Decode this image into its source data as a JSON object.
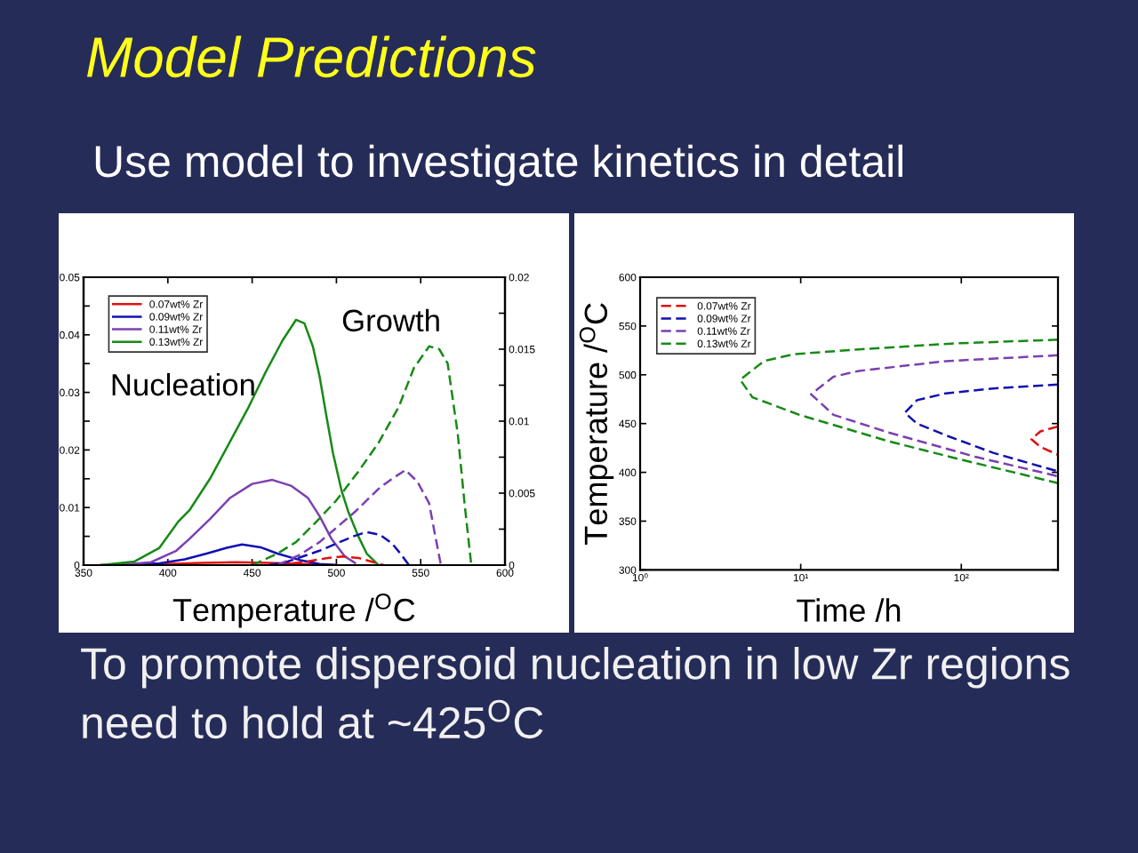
{
  "chart_data": [
    {
      "type": "other",
      "title": "Model Predictions",
      "subtitle": "Use model to investigate kinetics in detail",
      "annotations": [
        "To promote dispersoid nucleation in low Zr regions need to hold at ~425$^{O}$C"
      ]
    },
    {
      "type": "line",
      "xlabel": "Temperature /$^{O}$C",
      "annotations": [
        "Nucleation",
        "Growth"
      ],
      "xlim": [
        350,
        600
      ],
      "xticks": [
        350,
        400,
        450,
        500,
        550,
        600
      ],
      "ylim": [
        0,
        0.05
      ],
      "yticks": [
        0,
        {
          "value": 0.005,
          "label": null
        },
        0.01,
        {
          "value": 0.015,
          "label": null
        },
        0.02,
        {
          "value": 0.025,
          "label": null
        },
        0.03,
        {
          "value": 0.035,
          "label": null
        },
        0.04,
        {
          "value": 0.045,
          "label": null
        },
        0.05
      ],
      "y2lim": [
        0,
        0.02
      ],
      "y2ticks": [
        0,
        {
          "value": 0.0025,
          "label": null
        },
        0.005,
        {
          "value": 0.0075,
          "label": null
        },
        0.01,
        {
          "value": 0.0125,
          "label": null
        },
        0.015,
        {
          "value": 0.0175,
          "label": null
        },
        0.02
      ],
      "legend": "top left",
      "series": [
        {
          "name": "0.07wt% Zr",
          "color": "#e01010",
          "line_style": "solid",
          "x": [
            360,
            400,
            420,
            440,
            460,
            480,
            500
          ],
          "values": [
            0,
            0.0002,
            0.0004,
            0.0005,
            0.0004,
            0.0002,
            0
          ]
        },
        {
          "name": "0.09wt% Zr",
          "color": "#1010b0",
          "line_style": "solid",
          "x": [
            370,
            395,
            410,
            423,
            435,
            444,
            455,
            465,
            478,
            490,
            500
          ],
          "values": [
            0,
            0.0003,
            0.001,
            0.002,
            0.003,
            0.0036,
            0.0031,
            0.002,
            0.0009,
            0.0002,
            0
          ]
        },
        {
          "name": "0.11wt% Zr",
          "color": "#7b40b0",
          "line_style": "solid",
          "x": [
            370,
            390,
            405,
            413,
            425,
            437,
            450,
            462,
            473,
            483,
            490,
            497,
            505,
            511
          ],
          "values": [
            0,
            0.0005,
            0.0025,
            0.0046,
            0.008,
            0.0117,
            0.0141,
            0.0148,
            0.0138,
            0.0117,
            0.0085,
            0.0046,
            0.0015,
            0.0004
          ]
        },
        {
          "name": "0.13wt% Zr",
          "color": "#178a17",
          "line_style": "solid",
          "x": [
            360,
            380,
            395,
            406,
            413,
            425,
            437,
            448,
            458,
            468,
            476,
            481,
            486,
            490,
            494,
            498,
            503,
            507,
            513,
            518,
            525
          ],
          "values": [
            0,
            0.0006,
            0.003,
            0.0075,
            0.0096,
            0.015,
            0.0215,
            0.0275,
            0.0335,
            0.039,
            0.0426,
            0.042,
            0.038,
            0.0328,
            0.026,
            0.0194,
            0.013,
            0.0093,
            0.005,
            0.002,
            0
          ]
        },
        {
          "color": "#e01010",
          "line_style": "dashed",
          "axis": "y2",
          "x": [
            465,
            480,
            495,
            504,
            513,
            522,
            528
          ],
          "values": [
            0,
            0.0002,
            0.0005,
            0.0006,
            0.0005,
            0.0002,
            0
          ]
        },
        {
          "color": "#1010b0",
          "line_style": "dashed",
          "axis": "y2",
          "x": [
            460,
            470,
            480,
            490,
            500,
            510,
            518,
            526,
            533,
            538,
            543
          ],
          "values": [
            0,
            0.0002,
            0.0006,
            0.001,
            0.0015,
            0.002,
            0.0023,
            0.0021,
            0.0015,
            0.0008,
            0
          ]
        },
        {
          "color": "#7b40b0",
          "line_style": "dashed",
          "axis": "y2",
          "x": [
            465,
            478,
            490,
            500,
            511,
            525,
            533,
            541,
            548,
            555,
            559,
            562
          ],
          "values": [
            0,
            0.0007,
            0.0016,
            0.0026,
            0.0037,
            0.0053,
            0.006,
            0.0066,
            0.0058,
            0.0043,
            0.0018,
            0
          ]
        },
        {
          "color": "#178a17",
          "line_style": "dashed",
          "axis": "y2",
          "x": [
            450,
            465,
            476,
            488,
            500,
            513,
            525,
            537,
            546,
            555,
            561,
            566,
            572,
            576,
            580
          ],
          "values": [
            0,
            0.0008,
            0.0016,
            0.003,
            0.0045,
            0.0065,
            0.0085,
            0.011,
            0.0137,
            0.0152,
            0.015,
            0.014,
            0.0091,
            0.0043,
            0
          ]
        }
      ]
    },
    {
      "type": "line",
      "log": "x",
      "xlabel": "Time /h",
      "ylabel": "Temperature /$^{O}$C",
      "xlim": [
        1,
        400
      ],
      "xticks": [
        {
          "value": 1,
          "label": "10⁰"
        },
        {
          "value": 10,
          "label": "10¹"
        },
        {
          "value": 100,
          "label": "10²"
        }
      ],
      "ylim": [
        300,
        600
      ],
      "yticks": [
        300,
        350,
        400,
        450,
        500,
        550,
        600
      ],
      "legend": "top left",
      "line_style": "dashed",
      "series": [
        {
          "name": "0.07wt% Zr",
          "color": "#e01010",
          "x": [
            400,
            311,
            273,
            311,
            400
          ],
          "values": [
            447,
            442,
            434,
            426,
            418
          ]
        },
        {
          "name": "0.09wt% Zr",
          "color": "#1010b0",
          "x": [
            400,
            158,
            80,
            53,
            44.5,
            53,
            80,
            158,
            400
          ],
          "values": [
            490,
            486,
            481,
            474,
            461,
            450,
            438,
            420,
            401
          ]
        },
        {
          "name": "0.11wt% Zr",
          "color": "#7b40b0",
          "x": [
            400,
            80,
            23,
            16,
            11.6,
            16,
            35,
            122,
            400
          ],
          "values": [
            520,
            514,
            504,
            498,
            480,
            459,
            441,
            416,
            396
          ]
        },
        {
          "name": "0.13wt% Zr",
          "color": "#178a17",
          "x": [
            400,
            87,
            23,
            9,
            5.9,
            4.2,
            5,
            9.8,
            35,
            100,
            400
          ],
          "values": [
            536,
            532,
            526,
            521,
            514,
            495,
            477,
            459,
            432,
            413,
            389
          ]
        }
      ]
    }
  ]
}
